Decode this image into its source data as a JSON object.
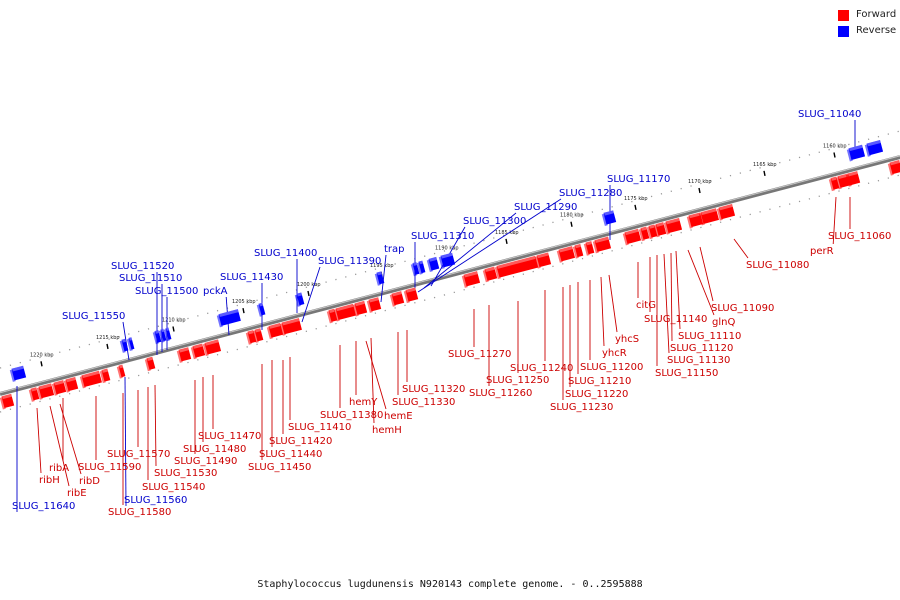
{
  "legend": [
    {
      "label": "Forward",
      "color": "#ff0000"
    },
    {
      "label": "Reverse",
      "color": "#0000ff"
    }
  ],
  "caption": "Staphylococcus lugdunensis N920143 complete genome. - 0..2595888",
  "colors": {
    "forward": "#ff0000",
    "reverse": "#0000ff",
    "backbone": "#777777"
  },
  "ticks": [
    "1160 kbp",
    "1165 kbp",
    "1170 kbp",
    "1175 kbp",
    "1180 kbp",
    "1185 kbp",
    "1190 kbp",
    "1195 kbp",
    "1200 kbp",
    "1205 kbp",
    "1210 kbp",
    "1215 kbp",
    "1220 kbp"
  ],
  "reverse_genes": [
    "SLUG_11040",
    "SLUG_11170",
    "SLUG_11280",
    "SLUG_11290",
    "SLUG_11300",
    "SLUG_11310",
    "trap",
    "SLUG_11390",
    "SLUG_11400",
    "SLUG_11430",
    "pckA",
    "SLUG_11520",
    "SLUG_11510",
    "SLUG_11500",
    "SLUG_11550",
    "SLUG_11640",
    "SLUG_11560"
  ],
  "forward_genes": [
    "SLUG_11060",
    "perR",
    "SLUG_11080",
    "SLUG_11090",
    "glnQ",
    "SLUG_11110",
    "SLUG_11120",
    "SLUG_11130",
    "SLUG_11150",
    "SLUG_11140",
    "citG",
    "yhcS",
    "yhcR",
    "SLUG_11200",
    "SLUG_11210",
    "SLUG_11220",
    "SLUG_11230",
    "SLUG_11240",
    "SLUG_11250",
    "SLUG_11260",
    "SLUG_11270",
    "SLUG_11320",
    "SLUG_11330",
    "hemH",
    "hemE",
    "hemY",
    "SLUG_11380",
    "SLUG_11410",
    "SLUG_11420",
    "SLUG_11440",
    "SLUG_11450",
    "SLUG_11470",
    "SLUG_11480",
    "SLUG_11490",
    "SLUG_11530",
    "SLUG_11540",
    "SLUG_11570",
    "SLUG_11580",
    "SLUG_11590",
    "ribA",
    "ribD",
    "ribE",
    "ribH"
  ]
}
